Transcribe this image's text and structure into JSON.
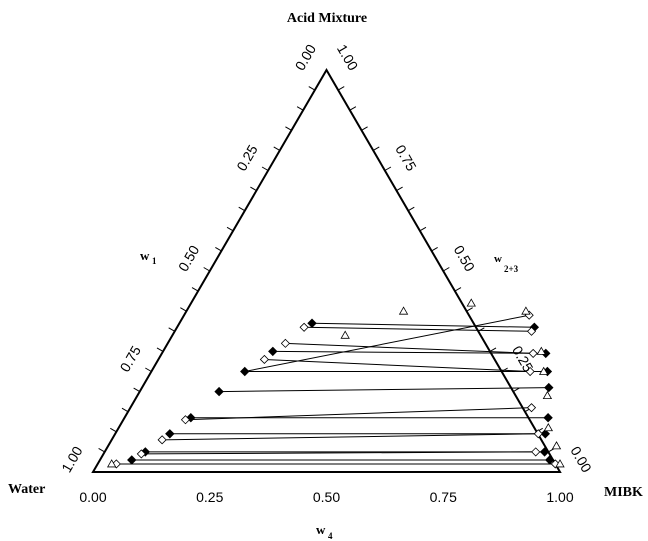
{
  "chart_data": {
    "type": "scatter",
    "subtype": "ternary",
    "vertex_labels": {
      "top": "Acid Mixture",
      "left": "Water",
      "right": "MIBK"
    },
    "axis_labels": {
      "w1": {
        "main": "w",
        "sub": "1"
      },
      "w23": {
        "main": "w",
        "sub": "2+3"
      },
      "w4": {
        "main": "w",
        "sub": "4"
      }
    },
    "ticks": {
      "bottom": [
        "0.00",
        "0.25",
        "0.50",
        "0.75",
        "1.00"
      ],
      "left": [
        "1.00",
        "0.75",
        "0.50",
        "0.25",
        "0.00"
      ],
      "right": [
        "0.00",
        "0.25",
        "0.50",
        "0.75",
        "1.00"
      ]
    },
    "grid": false,
    "legend": "none",
    "colors": {
      "filled": "#000000",
      "open": "#000000",
      "frame": "#000000",
      "tieline": "#000000"
    },
    "series": [
      {
        "marker": "filled-diamond",
        "points": [
          {
            "w4": 0.963,
            "w1": 0.03
          },
          {
            "w4": 0.068,
            "w1": 0.03
          },
          {
            "w4": 0.942,
            "w1": 0.05
          },
          {
            "w4": 0.087,
            "w1": 0.05
          },
          {
            "w4": 0.921,
            "w1": 0.095
          },
          {
            "w4": 0.117,
            "w1": 0.095
          },
          {
            "w4": 0.907,
            "w1": 0.135
          },
          {
            "w4": 0.142,
            "w1": 0.135
          },
          {
            "w4": 0.871,
            "w1": 0.21
          },
          {
            "w4": 0.17,
            "w1": 0.2
          },
          {
            "w4": 0.848,
            "w1": 0.25
          },
          {
            "w4": 0.2,
            "w1": 0.25
          },
          {
            "w4": 0.822,
            "w1": 0.295
          },
          {
            "w4": 0.235,
            "w1": 0.3
          },
          {
            "w4": 0.765,
            "w1": 0.36
          },
          {
            "w4": 0.284,
            "w1": 0.37
          }
        ]
      },
      {
        "marker": "open-diamond",
        "points": [
          {
            "w4": 0.739,
            "w1": 0.39
          },
          {
            "w4": 0.764,
            "w1": 0.35
          },
          {
            "w4": 0.795,
            "w1": 0.295
          },
          {
            "w4": 0.811,
            "w1": 0.25
          },
          {
            "w4": 0.859,
            "w1": 0.16
          },
          {
            "w4": 0.906,
            "w1": 0.095
          },
          {
            "w4": 0.923,
            "w1": 0.05
          },
          {
            "w4": 0.98,
            "w1": 0.02
          },
          {
            "w4": 0.272,
            "w1": 0.36
          },
          {
            "w4": 0.252,
            "w1": 0.32
          },
          {
            "w4": 0.227,
            "w1": 0.28
          },
          {
            "w4": 0.133,
            "w1": 0.13
          },
          {
            "w4": 0.108,
            "w1": 0.08
          },
          {
            "w4": 0.081,
            "w1": 0.045
          },
          {
            "w4": 0.04,
            "w1": 0.02
          }
        ]
      },
      {
        "marker": "open-triangle",
        "points": [
          {
            "w4": 0.37,
            "w1": 0.34
          },
          {
            "w4": 0.465,
            "w1": 0.4
          },
          {
            "w4": 0.6,
            "w1": 0.42
          },
          {
            "w4": 0.727,
            "w1": 0.4
          },
          {
            "w4": 0.81,
            "w1": 0.3
          },
          {
            "w4": 0.84,
            "w1": 0.25
          },
          {
            "w4": 0.878,
            "w1": 0.19
          },
          {
            "w4": 0.92,
            "w1": 0.11
          },
          {
            "w4": 0.96,
            "w1": 0.065
          },
          {
            "w4": 0.99,
            "w1": 0.02
          },
          {
            "w4": 0.03,
            "w1": 0.02
          }
        ]
      }
    ],
    "tie_lines": [
      {
        "from": {
          "w4": 0.04,
          "w1": 0.02
        },
        "to": {
          "w4": 0.98,
          "w1": 0.02
        }
      },
      {
        "from": {
          "w4": 0.068,
          "w1": 0.03
        },
        "to": {
          "w4": 0.963,
          "w1": 0.03
        }
      },
      {
        "from": {
          "w4": 0.081,
          "w1": 0.045
        },
        "to": {
          "w4": 0.923,
          "w1": 0.05
        }
      },
      {
        "from": {
          "w4": 0.087,
          "w1": 0.05
        },
        "to": {
          "w4": 0.942,
          "w1": 0.05
        }
      },
      {
        "from": {
          "w4": 0.108,
          "w1": 0.08
        },
        "to": {
          "w4": 0.906,
          "w1": 0.095
        }
      },
      {
        "from": {
          "w4": 0.117,
          "w1": 0.095
        },
        "to": {
          "w4": 0.921,
          "w1": 0.095
        }
      },
      {
        "from": {
          "w4": 0.133,
          "w1": 0.13
        },
        "to": {
          "w4": 0.859,
          "w1": 0.16
        }
      },
      {
        "from": {
          "w4": 0.142,
          "w1": 0.135
        },
        "to": {
          "w4": 0.907,
          "w1": 0.135
        }
      },
      {
        "from": {
          "w4": 0.17,
          "w1": 0.2
        },
        "to": {
          "w4": 0.871,
          "w1": 0.21
        }
      },
      {
        "from": {
          "w4": 0.2,
          "w1": 0.25
        },
        "to": {
          "w4": 0.848,
          "w1": 0.25
        }
      },
      {
        "from": {
          "w4": 0.227,
          "w1": 0.28
        },
        "to": {
          "w4": 0.811,
          "w1": 0.25
        }
      },
      {
        "from": {
          "w4": 0.235,
          "w1": 0.3
        },
        "to": {
          "w4": 0.822,
          "w1": 0.295
        }
      },
      {
        "from": {
          "w4": 0.252,
          "w1": 0.32
        },
        "to": {
          "w4": 0.795,
          "w1": 0.295
        }
      },
      {
        "from": {
          "w4": 0.272,
          "w1": 0.36
        },
        "to": {
          "w4": 0.764,
          "w1": 0.35
        }
      },
      {
        "from": {
          "w4": 0.284,
          "w1": 0.37
        },
        "to": {
          "w4": 0.765,
          "w1": 0.36
        }
      },
      {
        "from": {
          "w4": 0.2,
          "w1": 0.25
        },
        "to": {
          "w4": 0.739,
          "w1": 0.39
        }
      }
    ]
  }
}
